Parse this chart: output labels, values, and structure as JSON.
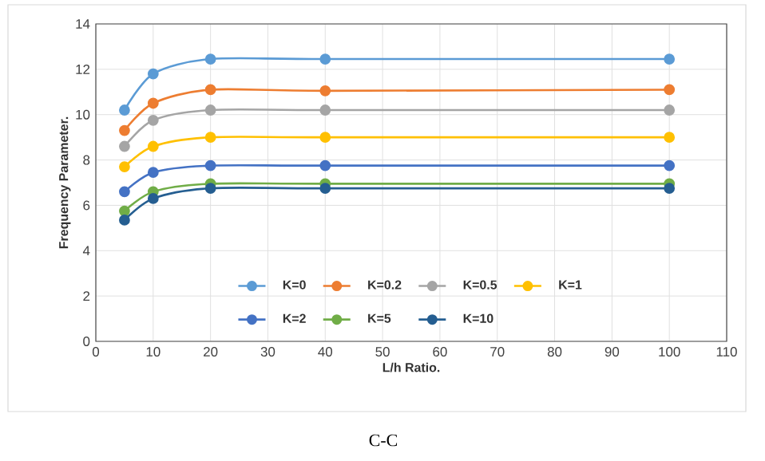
{
  "chart_data": {
    "type": "line",
    "xlabel": "L/h Ratio.",
    "ylabel": "Frequency Parameter.",
    "annotations": [
      "C-C"
    ],
    "x": [
      5,
      10,
      20,
      40,
      100
    ],
    "series": [
      {
        "name": "K=0",
        "color": "#5b9bd5",
        "values": [
          10.2,
          11.8,
          12.45,
          12.45,
          12.45
        ]
      },
      {
        "name": "K=0.2",
        "color": "#ed7d31",
        "values": [
          9.3,
          10.5,
          11.1,
          11.05,
          11.1
        ]
      },
      {
        "name": "K=0.5",
        "color": "#a5a5a5",
        "values": [
          8.6,
          9.75,
          10.2,
          10.2,
          10.2
        ]
      },
      {
        "name": "K=1",
        "color": "#ffc000",
        "values": [
          7.7,
          8.6,
          9.0,
          9.0,
          9.0
        ]
      },
      {
        "name": "K=2",
        "color": "#4472c4",
        "values": [
          6.6,
          7.45,
          7.75,
          7.75,
          7.75
        ]
      },
      {
        "name": "K=5",
        "color": "#70ad47",
        "values": [
          5.75,
          6.6,
          6.95,
          6.95,
          6.95
        ]
      },
      {
        "name": "K=10",
        "color": "#255e91",
        "values": [
          5.35,
          6.3,
          6.75,
          6.75,
          6.75
        ]
      }
    ],
    "xlim": [
      0,
      110
    ],
    "ylim": [
      0,
      14
    ],
    "xticks": [
      0,
      10,
      20,
      30,
      40,
      50,
      60,
      70,
      80,
      90,
      100,
      110
    ],
    "yticks": [
      0,
      2,
      4,
      6,
      8,
      10,
      12,
      14
    ],
    "grid": true,
    "legend": "bottom",
    "marker": "circle"
  }
}
